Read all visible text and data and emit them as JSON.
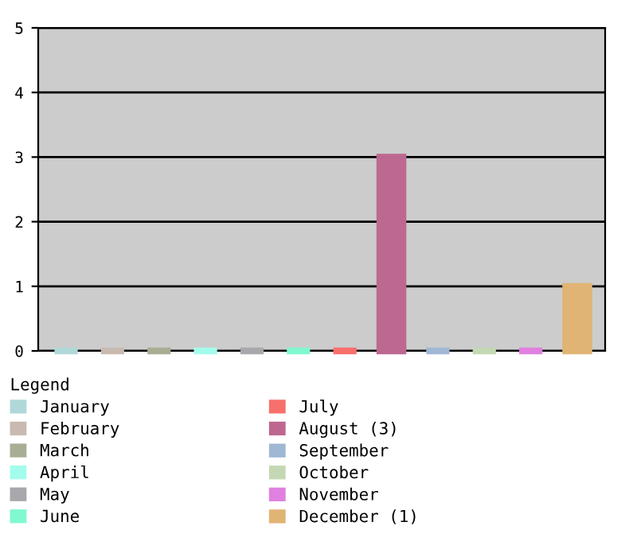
{
  "chart_data": {
    "type": "bar",
    "categories": [
      null,
      null,
      null,
      null,
      null,
      null,
      null,
      null,
      null,
      null,
      null,
      null
    ],
    "series": [
      {
        "name": "January",
        "color": "#b0d8d8",
        "values": [
          0,
          null,
          null,
          null,
          null,
          null,
          null,
          null,
          null,
          null,
          null,
          null
        ]
      },
      {
        "name": "February",
        "color": "#c8bab0",
        "values": [
          null,
          0,
          null,
          null,
          null,
          null,
          null,
          null,
          null,
          null,
          null,
          null
        ]
      },
      {
        "name": "March",
        "color": "#a8ae94",
        "values": [
          null,
          null,
          0,
          null,
          null,
          null,
          null,
          null,
          null,
          null,
          null,
          null
        ]
      },
      {
        "name": "April",
        "color": "#a4fcec",
        "values": [
          null,
          null,
          null,
          0,
          null,
          null,
          null,
          null,
          null,
          null,
          null,
          null
        ]
      },
      {
        "name": "May",
        "color": "#a8a8ac",
        "values": [
          null,
          null,
          null,
          null,
          0,
          null,
          null,
          null,
          null,
          null,
          null,
          null
        ]
      },
      {
        "name": "June",
        "color": "#80f8d0",
        "values": [
          null,
          null,
          null,
          null,
          null,
          0,
          null,
          null,
          null,
          null,
          null,
          null
        ]
      },
      {
        "name": "July",
        "color": "#f8706c",
        "values": [
          null,
          null,
          null,
          null,
          null,
          null,
          0,
          null,
          null,
          null,
          null,
          null
        ]
      },
      {
        "name": "August (3)",
        "color": "#bc6890",
        "values": [
          null,
          null,
          null,
          null,
          null,
          null,
          null,
          3,
          null,
          null,
          null,
          null
        ]
      },
      {
        "name": "September",
        "color": "#a0b8d4",
        "values": [
          null,
          null,
          null,
          null,
          null,
          null,
          null,
          null,
          0,
          null,
          null,
          null
        ]
      },
      {
        "name": "October",
        "color": "#c4d8b4",
        "values": [
          null,
          null,
          null,
          null,
          null,
          null,
          null,
          null,
          null,
          0,
          null,
          null
        ]
      },
      {
        "name": "November",
        "color": "#e080e0",
        "values": [
          null,
          null,
          null,
          null,
          null,
          null,
          null,
          null,
          null,
          null,
          0,
          null
        ]
      },
      {
        "name": "December (1)",
        "color": "#e0b474",
        "values": [
          null,
          null,
          null,
          null,
          null,
          null,
          null,
          null,
          null,
          null,
          null,
          1
        ]
      }
    ],
    "legend_title": "Legend",
    "legend": "bottom",
    "ylim": [
      0,
      5
    ],
    "yticks": [
      0,
      1,
      2,
      3,
      4,
      5
    ],
    "grid": "y",
    "tick_labels": "y"
  }
}
